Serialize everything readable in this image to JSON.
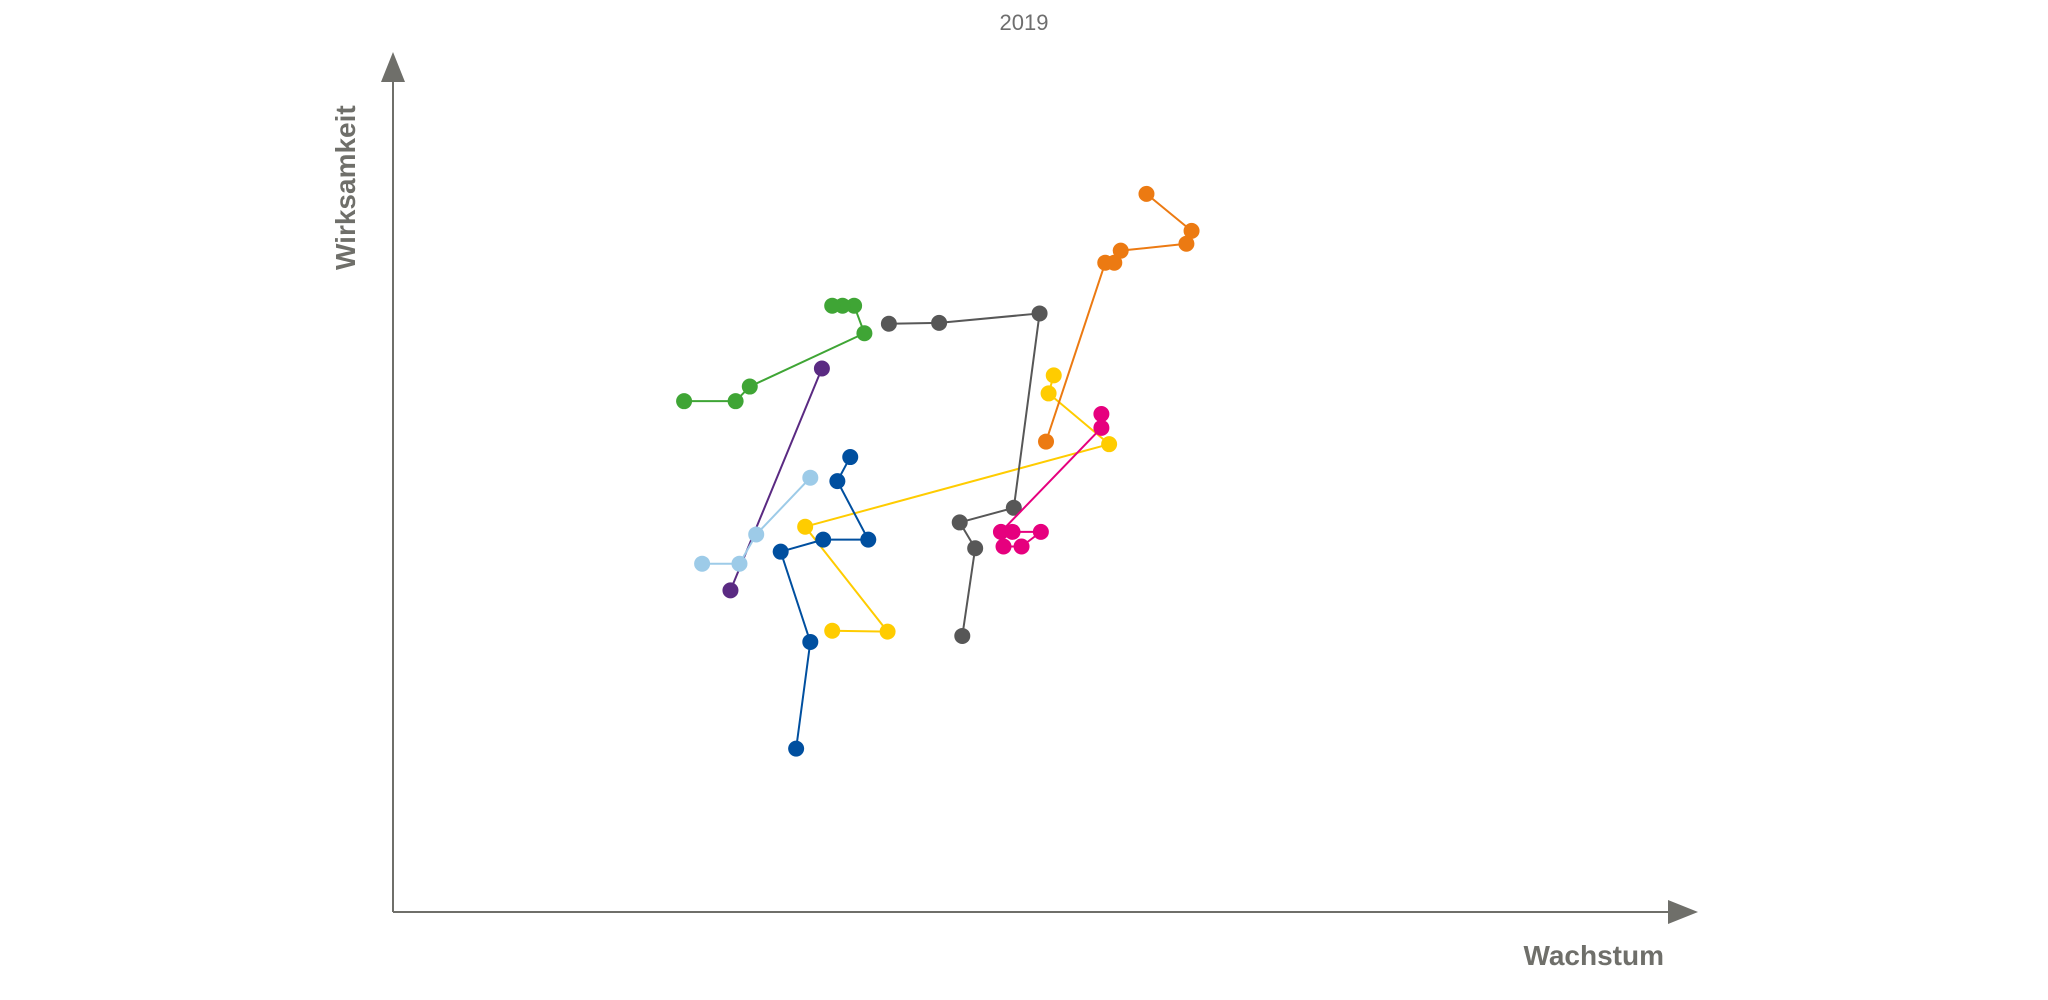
{
  "chart_data": {
    "type": "line",
    "title": "2019",
    "xlabel": "Wachstum",
    "ylabel": "Wirksamkeit",
    "xlim": [
      0,
      100
    ],
    "ylim": [
      0,
      100
    ],
    "grid": false,
    "axis_color": "#6f6f6a",
    "series": [
      {
        "color": "#3fa535",
        "points": [
          [
            22.6,
            59.4
          ],
          [
            26.6,
            59.4
          ],
          [
            27.7,
            61.1
          ],
          [
            36.6,
            67.3
          ],
          [
            35.8,
            70.5
          ],
          [
            34.9,
            70.5
          ],
          [
            34.1,
            70.5
          ]
        ]
      },
      {
        "color": "#5a2a82",
        "points": [
          [
            26.2,
            37.4
          ],
          [
            33.3,
            63.2
          ]
        ]
      },
      {
        "color": "#9dcbe8",
        "points": [
          [
            24.0,
            40.5
          ],
          [
            26.9,
            40.5
          ],
          [
            28.2,
            43.9
          ],
          [
            32.4,
            50.5
          ]
        ]
      },
      {
        "color": "#ffcc00",
        "points": [
          [
            34.1,
            32.7
          ],
          [
            38.4,
            32.6
          ],
          [
            32.0,
            44.8
          ],
          [
            55.6,
            54.4
          ],
          [
            50.9,
            60.3
          ],
          [
            51.3,
            62.4
          ]
        ]
      },
      {
        "color": "#004f9f",
        "points": [
          [
            31.3,
            19.0
          ],
          [
            32.4,
            31.4
          ],
          [
            30.1,
            41.9
          ],
          [
            33.4,
            43.3
          ],
          [
            36.9,
            43.3
          ],
          [
            34.5,
            50.1
          ],
          [
            35.5,
            52.9
          ]
        ]
      },
      {
        "color": "#575757",
        "points": [
          [
            44.2,
            32.1
          ],
          [
            45.2,
            42.3
          ],
          [
            44.0,
            45.3
          ],
          [
            48.2,
            47.0
          ],
          [
            50.2,
            69.6
          ],
          [
            42.4,
            68.5
          ],
          [
            38.5,
            68.4
          ]
        ]
      },
      {
        "color": "#e6007e",
        "points": [
          [
            47.4,
            42.5
          ],
          [
            48.8,
            42.5
          ],
          [
            50.3,
            44.2
          ],
          [
            48.1,
            44.2
          ],
          [
            47.2,
            44.2
          ],
          [
            55.0,
            56.3
          ],
          [
            55.0,
            57.9
          ]
        ]
      },
      {
        "color": "#ec7a12",
        "points": [
          [
            50.7,
            54.7
          ],
          [
            55.3,
            75.5
          ],
          [
            56.0,
            75.5
          ],
          [
            56.5,
            76.9
          ],
          [
            61.6,
            77.7
          ],
          [
            62.0,
            79.2
          ],
          [
            58.5,
            83.5
          ]
        ]
      }
    ]
  }
}
